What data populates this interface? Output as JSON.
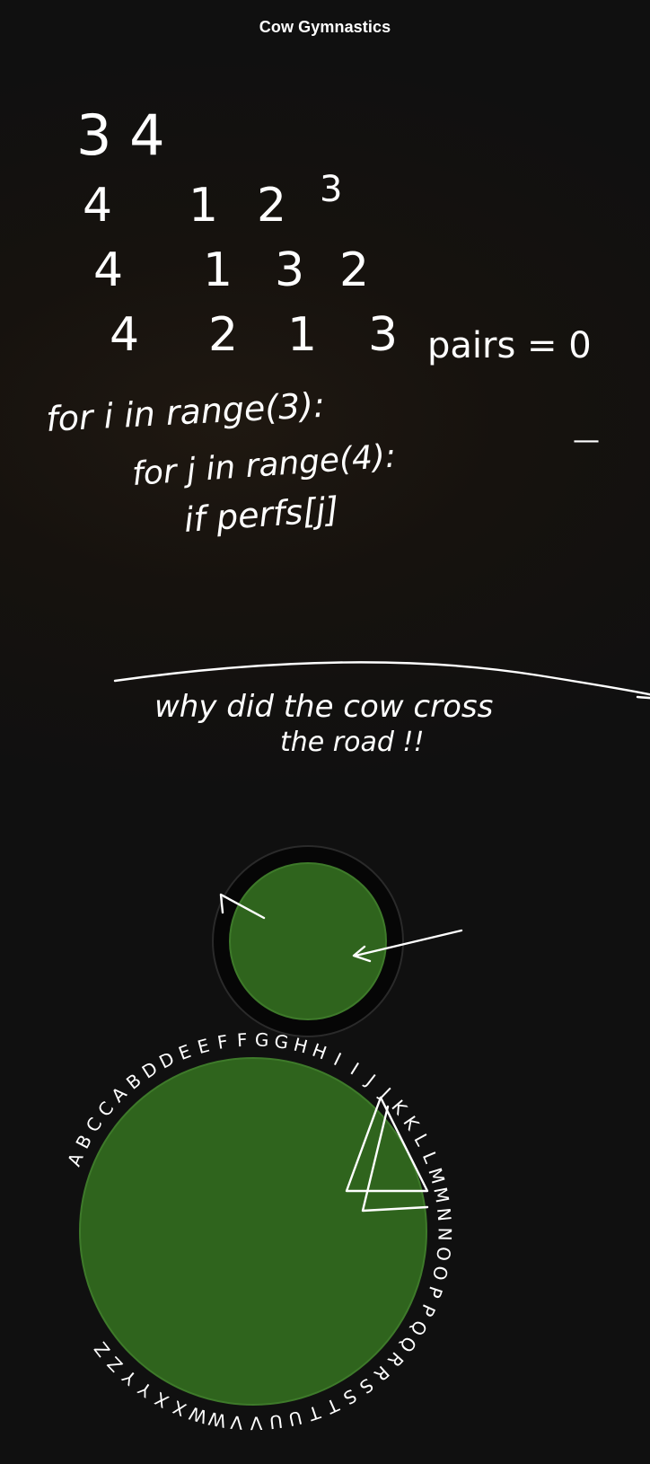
{
  "header": {
    "title": "Cow Gymnastics"
  },
  "notes": {
    "line1": "3 4",
    "rows": [
      [
        "4",
        "1",
        "2",
        "3"
      ],
      [
        "4",
        "1",
        "3",
        "2"
      ],
      [
        "4",
        "2",
        "1",
        "3"
      ]
    ],
    "pairs_label": "pairs = 0",
    "code_line1": "for i in range(3):",
    "code_line2": "for j in range(4):",
    "code_line3": "if perfs[j]",
    "dash": "—",
    "joke_line1": "why did the cow cross",
    "joke_line2": "the road !!"
  },
  "wheel": {
    "letters": [
      "A",
      "B",
      "C",
      "C",
      "A",
      "B",
      "D",
      "D",
      "E",
      "E",
      "F",
      "F",
      "G",
      "G",
      "H",
      "H",
      "I",
      "I",
      "J",
      "J",
      "K",
      "K",
      "L",
      "L",
      "M",
      "M",
      "N",
      "N",
      "O",
      "O",
      "P",
      "P",
      "Q",
      "Q",
      "R",
      "R",
      "S",
      "S",
      "T",
      "T",
      "U",
      "U",
      "V",
      "V",
      "W",
      "W",
      "X",
      "X",
      "Y",
      "Y",
      "Z",
      "Z"
    ]
  },
  "colors": {
    "circle_fill": "#2f641d",
    "ring": "#050505",
    "ink": "#ffffff"
  }
}
